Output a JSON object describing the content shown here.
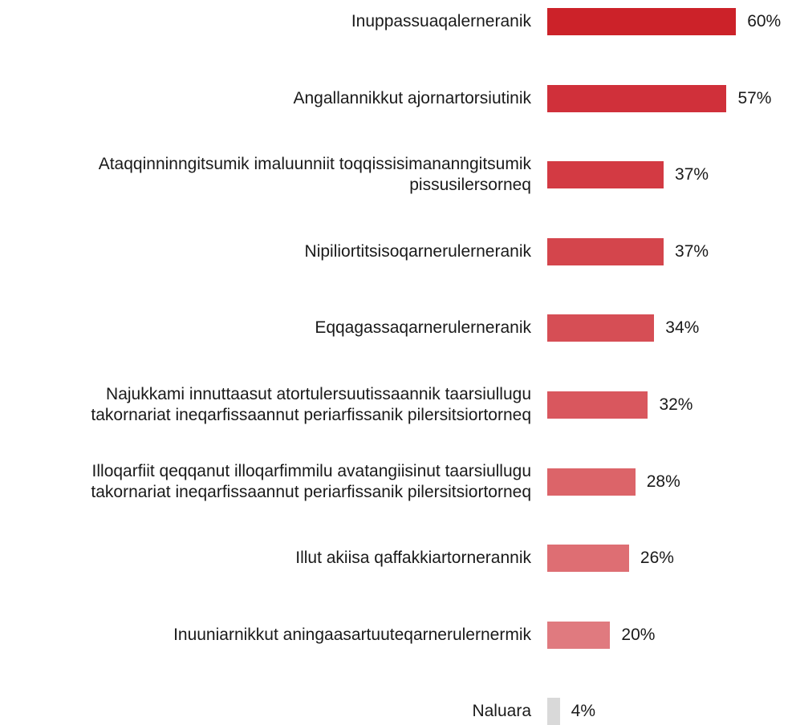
{
  "chart_data": {
    "type": "bar",
    "orientation": "horizontal",
    "categories": [
      "Inuppassuaqalerneranik",
      "Angallannikkut ajornartorsiutinik",
      "Ataqqinninngitsumik imaluunniit toqqissisimananngitsumik\npissusilersorneq",
      "Nipiliortitsisoqarnerulerneranik",
      "Eqqagassaqarnerulerneranik",
      "Najukkami innuttaasut atortulersuutissaannik taarsiullugu\ntakornariat ineqarfissaannut periarfissanik pilersitsiortorneq",
      "Illoqarfiit qeqqanut illoqarfimmilu avatangiisinut taarsiullugu\ntakornariat ineqarfissaannut periarfissanik pilersitsiortorneq",
      "Illut akiisa qaffakkiartornerannik",
      "Inuuniarnikkut aningaasartuuteqarnerulernermik",
      "Naluara"
    ],
    "values": [
      60,
      57,
      37,
      37,
      34,
      32,
      28,
      26,
      20,
      4
    ],
    "value_labels": [
      "60%",
      "57%",
      "37%",
      "37%",
      "34%",
      "32%",
      "28%",
      "26%",
      "20%",
      "4%"
    ],
    "colors": [
      "#cc2229",
      "#d0303a",
      "#d33a43",
      "#d4454c",
      "#d64e55",
      "#d9575e",
      "#dc6469",
      "#de6e73",
      "#e07a7f",
      "#d9d9d9"
    ]
  }
}
